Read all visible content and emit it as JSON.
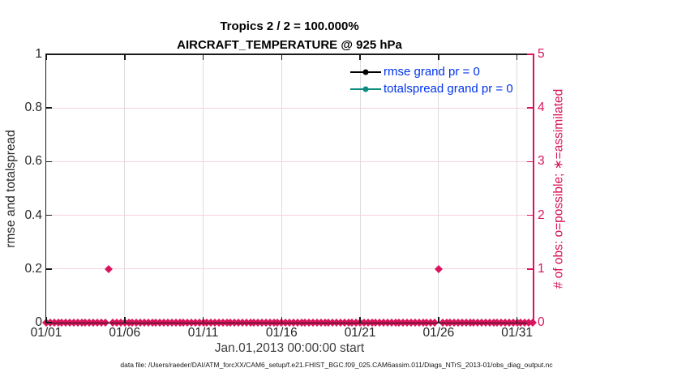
{
  "title": {
    "line1": "Tropics 2 / 2 = 100.000%",
    "line2": "AIRCRAFT_TEMPERATURE @ 925 hPa"
  },
  "left_axis": {
    "label": "rmse and totalspread",
    "ticks": [
      "0",
      "0.2",
      "0.4",
      "0.6",
      "0.8",
      "1"
    ],
    "min": 0,
    "max": 1
  },
  "right_axis": {
    "label": "# of obs: o=possible; ∗=assimilated",
    "ticks": [
      "0",
      "1",
      "2",
      "3",
      "4",
      "5"
    ],
    "min": 0,
    "max": 5
  },
  "x_axis": {
    "label": "Jan.01,2013 00:00:00 start",
    "tick_labels": [
      "01/01",
      "01/06",
      "01/11",
      "01/16",
      "01/21",
      "01/26",
      "01/31"
    ],
    "tick_days": [
      0,
      5,
      10,
      15,
      20,
      25,
      30
    ],
    "range_days": [
      0,
      31
    ]
  },
  "legend": [
    {
      "label": "rmse grand pr = 0",
      "color": "#000000"
    },
    {
      "label": "totalspread grand pr = 0",
      "color": "#0e8c7f"
    }
  ],
  "colors": {
    "obs": "#d9135c",
    "obs_gridline": "#f7d3e1",
    "x_gridline": "#dcdcdc",
    "rmse": "#000000",
    "totalspread": "#0e8c7f",
    "legend_text": "#0033ee",
    "spine": "#1a1a1a"
  },
  "footer": "data file: /Users/raeder/DAI/ATM_forcXX/CAM6_setup/f.e21.FHIST_BGC.f09_025.CAM6assim.011/Diags_NTrS_2013-01/obs_diag_output.nc",
  "chart_data": {
    "type": "scatter",
    "title": "Tropics 2 / 2 = 100.000%  AIRCRAFT_TEMPERATURE @ 925 hPa",
    "xlabel": "Jan.01,2013 00:00:00 start",
    "ylabel_left": "rmse and totalspread",
    "ylabel_right": "# of obs: o=possible; ∗=assimilated",
    "left_ylim": [
      0,
      1
    ],
    "right_ylim": [
      0,
      5
    ],
    "x_range_days": [
      0,
      31
    ],
    "grid": true,
    "legend_position": "top-right-inside",
    "series": [
      {
        "name": "rmse grand pr = 0",
        "color": "#000000",
        "axis": "left",
        "values": []
      },
      {
        "name": "totalspread grand pr = 0",
        "color": "#0e8c7f",
        "axis": "left",
        "values": []
      },
      {
        "name": "obs counts (o=possible, *=assimilated)",
        "color": "#d9135c",
        "axis": "right",
        "marker": "asterisk-circle",
        "start_day": 0,
        "end_day": 31,
        "interval_days": 0.25,
        "default_value": 0,
        "exceptions": [
          {
            "day": 4,
            "date": "01/05",
            "value": 1
          },
          {
            "day": 25,
            "date": "01/26",
            "value": 1
          }
        ]
      }
    ]
  }
}
